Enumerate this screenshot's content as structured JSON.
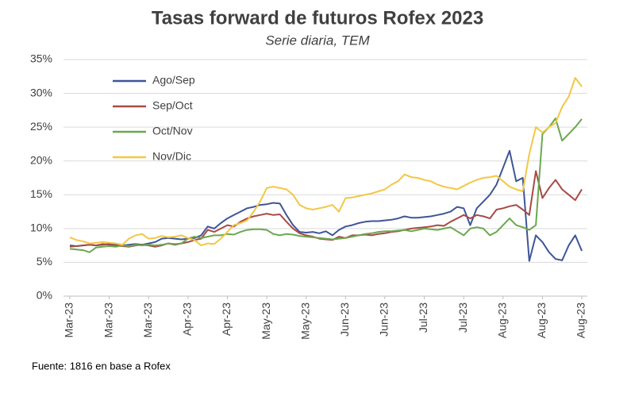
{
  "chart_data": {
    "type": "line",
    "title": "Tasas forward de futuros Rofex 2023",
    "subtitle": "Serie diaria, TEM",
    "source": "Fuente: 1816 en base a Rofex",
    "categories": [
      "Mar-23",
      null,
      null,
      null,
      null,
      null,
      "Mar-23",
      null,
      null,
      null,
      null,
      null,
      "Mar-23",
      null,
      null,
      null,
      null,
      null,
      "Apr-23",
      null,
      null,
      null,
      null,
      null,
      "Apr-23",
      null,
      null,
      null,
      null,
      null,
      "May-23",
      null,
      null,
      null,
      null,
      null,
      "May-23",
      null,
      null,
      null,
      null,
      null,
      "Jun-23",
      null,
      null,
      null,
      null,
      null,
      "Jun-23",
      null,
      null,
      null,
      null,
      null,
      "Jul-23",
      null,
      null,
      null,
      null,
      null,
      "Jul-23",
      null,
      null,
      null,
      null,
      null,
      "Aug-23",
      null,
      null,
      null,
      null,
      null,
      "Aug-23",
      null,
      null,
      null,
      null,
      null,
      "Aug-23"
    ],
    "ylim": [
      0,
      35
    ],
    "yticks": [
      {
        "value": 0,
        "label": "0%"
      },
      {
        "value": 5,
        "label": "5%"
      },
      {
        "value": 10,
        "label": "10%"
      },
      {
        "value": 15,
        "label": "15%"
      },
      {
        "value": 20,
        "label": "20%"
      },
      {
        "value": 25,
        "label": "25%"
      },
      {
        "value": 30,
        "label": "30%"
      },
      {
        "value": 35,
        "label": "35%"
      }
    ],
    "grid": true,
    "legend": "upper-left",
    "series": [
      {
        "name": "Ago/Sep",
        "color": "#3f5597",
        "values": [
          7.5,
          7.4,
          7.5,
          7.6,
          7.5,
          7.6,
          7.7,
          7.6,
          7.5,
          7.6,
          7.7,
          7.6,
          7.8,
          8.0,
          8.5,
          8.6,
          8.5,
          8.4,
          8.5,
          8.6,
          9.0,
          10.3,
          10.0,
          10.8,
          11.5,
          12.0,
          12.5,
          13.0,
          13.2,
          13.5,
          13.6,
          13.8,
          13.7,
          12.0,
          10.5,
          9.5,
          9.4,
          9.5,
          9.3,
          9.6,
          9.0,
          9.8,
          10.3,
          10.5,
          10.8,
          11.0,
          11.1,
          11.1,
          11.2,
          11.3,
          11.5,
          11.8,
          11.6,
          11.6,
          11.7,
          11.8,
          12.0,
          12.2,
          12.5,
          13.2,
          13.0,
          10.5,
          13.0,
          14.0,
          15.0,
          16.5,
          19.0,
          21.5,
          17.0,
          17.5,
          5.2,
          9.0,
          8.0,
          6.5,
          5.5,
          5.3,
          7.5,
          9.0,
          6.7
        ]
      },
      {
        "name": "Sep/Oct",
        "color": "#a94a45",
        "values": [
          7.3,
          7.4,
          7.5,
          7.6,
          7.5,
          7.7,
          7.6,
          7.5,
          7.4,
          7.3,
          7.5,
          7.6,
          7.5,
          7.3,
          7.5,
          7.8,
          7.6,
          7.8,
          8.0,
          8.3,
          8.5,
          9.8,
          9.5,
          10.0,
          10.5,
          10.3,
          11.0,
          11.5,
          11.8,
          12.0,
          12.2,
          12.0,
          12.1,
          11.0,
          10.0,
          9.3,
          9.0,
          8.8,
          8.5,
          8.4,
          8.3,
          8.8,
          8.6,
          9.0,
          9.0,
          9.1,
          9.0,
          9.2,
          9.3,
          9.5,
          9.6,
          9.8,
          10.0,
          10.1,
          10.2,
          10.3,
          10.5,
          10.4,
          11.0,
          11.5,
          12.0,
          11.5,
          12.0,
          11.8,
          11.5,
          12.8,
          13.0,
          13.3,
          13.5,
          12.8,
          12.0,
          18.5,
          14.5,
          16.0,
          17.2,
          15.8,
          15.0,
          14.2,
          15.8
        ]
      },
      {
        "name": "Oct/Nov",
        "color": "#6aa84f",
        "values": [
          7.0,
          6.9,
          6.8,
          6.5,
          7.2,
          7.3,
          7.4,
          7.3,
          7.5,
          7.4,
          7.6,
          7.5,
          7.6,
          7.5,
          7.6,
          7.8,
          7.7,
          7.8,
          8.5,
          8.8,
          8.6,
          8.8,
          9.0,
          9.0,
          9.2,
          9.1,
          9.5,
          9.8,
          9.9,
          9.9,
          9.8,
          9.2,
          9.0,
          9.2,
          9.1,
          8.9,
          8.8,
          8.7,
          8.6,
          8.5,
          8.4,
          8.5,
          8.6,
          8.8,
          9.0,
          9.2,
          9.3,
          9.5,
          9.6,
          9.6,
          9.7,
          9.8,
          9.6,
          9.8,
          10.0,
          9.9,
          9.8,
          10.0,
          10.2,
          9.6,
          9.0,
          10.0,
          10.2,
          10.0,
          9.0,
          9.5,
          10.5,
          11.5,
          10.5,
          10.2,
          9.8,
          10.5,
          24.0,
          25.0,
          26.3,
          23.0,
          24.0,
          25.0,
          26.2
        ]
      },
      {
        "name": "Nov/Dic",
        "color": "#f2c745",
        "values": [
          8.7,
          8.3,
          8.1,
          7.8,
          7.9,
          8.0,
          7.9,
          7.8,
          7.6,
          8.5,
          9.0,
          9.2,
          8.5,
          8.6,
          8.9,
          8.7,
          8.8,
          9.0,
          8.6,
          8.3,
          7.5,
          7.8,
          7.7,
          8.5,
          9.5,
          10.5,
          10.8,
          11.2,
          12.5,
          14.0,
          16.0,
          16.2,
          16.0,
          15.8,
          15.0,
          13.5,
          13.0,
          12.8,
          13.0,
          13.2,
          13.5,
          12.5,
          14.5,
          14.6,
          14.8,
          15.0,
          15.2,
          15.5,
          15.8,
          16.5,
          17.0,
          18.0,
          17.6,
          17.5,
          17.2,
          17.0,
          16.5,
          16.2,
          16.0,
          15.8,
          16.3,
          16.8,
          17.2,
          17.5,
          17.6,
          17.8,
          17.0,
          16.2,
          15.8,
          15.5,
          21.0,
          25.0,
          24.2,
          25.0,
          25.6,
          28.0,
          29.5,
          32.3,
          31.0
        ]
      }
    ]
  }
}
